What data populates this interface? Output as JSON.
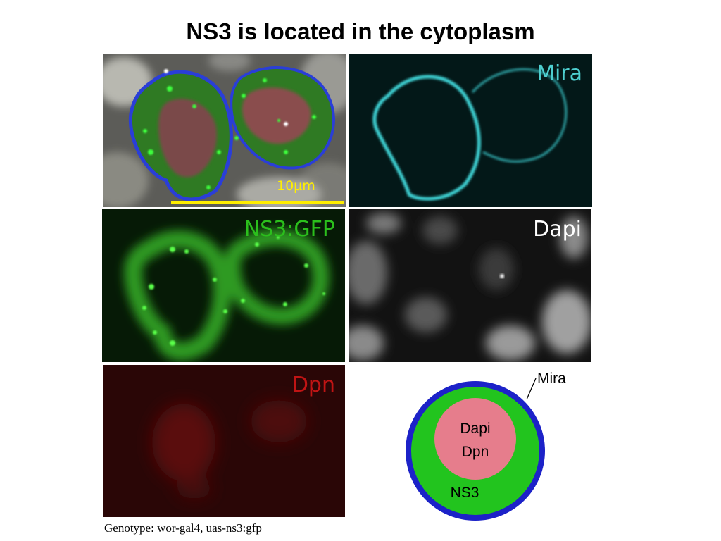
{
  "title": "NS3 is located in the cytoplasm",
  "panels": {
    "merge": {
      "scale_bar_label": "10µm"
    },
    "mira": {
      "label": "Mira",
      "color": "#4ecfd0"
    },
    "ns3gfp": {
      "label": "NS3:GFP",
      "color": "#2bbf1c"
    },
    "dapi": {
      "label": "Dapi",
      "color": "#ffffff"
    },
    "dpn": {
      "label": "Dpn",
      "color": "#c01414"
    }
  },
  "colors": {
    "scale_bar": "#ffee00",
    "diagram_outer": "#1c22c8",
    "diagram_cytoplasm": "#22c41e",
    "diagram_nucleus": "#e67d8c"
  },
  "diagram": {
    "outer_label": "Mira",
    "nucleus_label_1": "Dapi",
    "nucleus_label_2": "Dpn",
    "cytoplasm_label": "NS3"
  },
  "genotype": "Genotype: wor-gal4, uas-ns3:gfp"
}
